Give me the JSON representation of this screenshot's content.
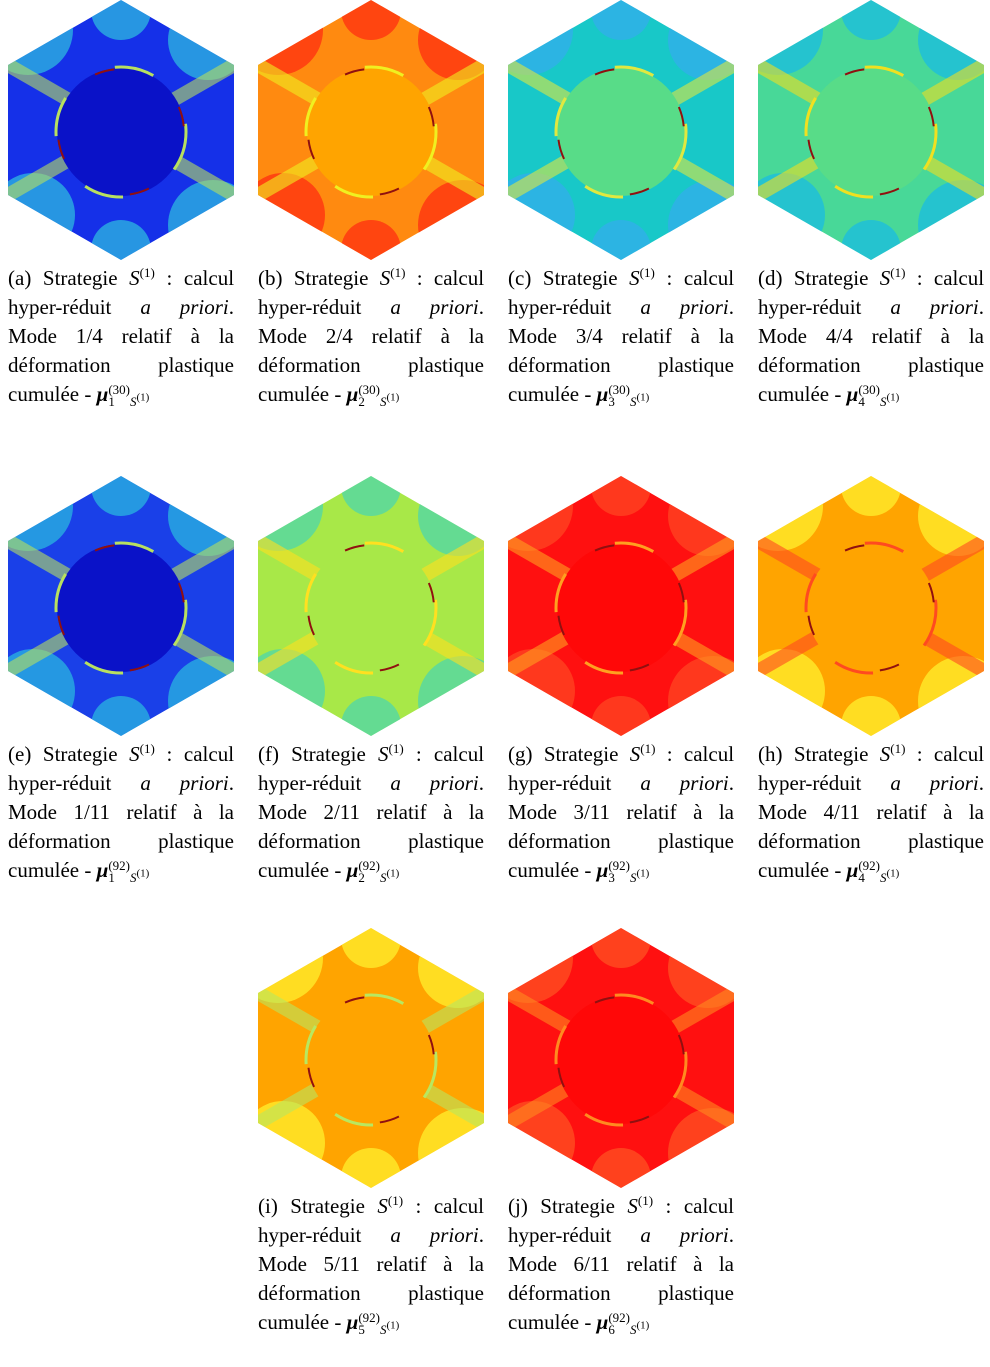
{
  "subfigures": [
    {
      "label": "(a)",
      "word": "Strategie",
      "sym": "S",
      "sym_sup": "(1)",
      "colon": ":",
      "text": "calcul hyper-réduit",
      "emph": "a priori",
      "rest": ". Mode 1/4 relatif à la déformation plastique cumulée -",
      "mu": "μ",
      "mu_sub": "1",
      "mu_sup": "(30)",
      "mu_index": "S",
      "mu_index_sup": "(1)"
    },
    {
      "label": "(b)",
      "word": "Strategie",
      "sym": "S",
      "sym_sup": "(1)",
      "colon": ":",
      "text": "calcul hyper-réduit",
      "emph": "a priori",
      "rest": ". Mode 2/4 relatif à la déformation plastique cumulée -",
      "mu": "μ",
      "mu_sub": "2",
      "mu_sup": "(30)",
      "mu_index": "S",
      "mu_index_sup": "(1)"
    },
    {
      "label": "(c)",
      "word": "Strategie",
      "sym": "S",
      "sym_sup": "(1)",
      "colon": ":",
      "text": "calcul hyper-réduit",
      "emph": "a priori",
      "rest": ". Mode 3/4 relatif à la déformation plastique cumulée -",
      "mu": "μ",
      "mu_sub": "3",
      "mu_sup": "(30)",
      "mu_index": "S",
      "mu_index_sup": "(1)"
    },
    {
      "label": "(d)",
      "word": "Strategie",
      "sym": "S",
      "sym_sup": "(1)",
      "colon": ":",
      "text": "calcul hyper-réduit",
      "emph": "a priori",
      "rest": ". Mode 4/4 relatif à la déformation plastique cumulée -",
      "mu": "μ",
      "mu_sub": "4",
      "mu_sup": "(30)",
      "mu_index": "S",
      "mu_index_sup": "(1)"
    },
    {
      "label": "(e)",
      "word": "Strategie",
      "sym": "S",
      "sym_sup": "(1)",
      "colon": ":",
      "text": "calcul hyper-réduit",
      "emph": "a priori",
      "rest": ". Mode 1/11 relatif à la déformation plastique cumulée -",
      "mu": "μ",
      "mu_sub": "1",
      "mu_sup": "(92)",
      "mu_index": "S",
      "mu_index_sup": "(1)"
    },
    {
      "label": "(f)",
      "word": "Strategie",
      "sym": "S",
      "sym_sup": "(1)",
      "colon": ":",
      "text": "calcul hyper-réduit",
      "emph": "a priori",
      "rest": ". Mode 2/11 relatif à la déformation plastique cumulée -",
      "mu": "μ",
      "mu_sub": "2",
      "mu_sup": "(92)",
      "mu_index": "S",
      "mu_index_sup": "(1)"
    },
    {
      "label": "(g)",
      "word": "Strategie",
      "sym": "S",
      "sym_sup": "(1)",
      "colon": ":",
      "text": "calcul hyper-réduit",
      "emph": "a priori",
      "rest": ". Mode 3/11 relatif à la déformation plastique cumulée -",
      "mu": "μ",
      "mu_sub": "3",
      "mu_sup": "(92)",
      "mu_index": "S",
      "mu_index_sup": "(1)"
    },
    {
      "label": "(h)",
      "word": "Strategie",
      "sym": "S",
      "sym_sup": "(1)",
      "colon": ":",
      "text": "calcul hyper-réduit",
      "emph": "a priori",
      "rest": ". Mode 4/11 relatif à la déformation plastique cumulée -",
      "mu": "μ",
      "mu_sub": "4",
      "mu_sup": "(92)",
      "mu_index": "S",
      "mu_index_sup": "(1)"
    },
    {
      "label": "(i)",
      "word": "Strategie",
      "sym": "S",
      "sym_sup": "(1)",
      "colon": ":",
      "text": "calcul hyper-réduit",
      "emph": "a priori",
      "rest": ". Mode 5/11 relatif à la déformation plastique cumulée -",
      "mu": "μ",
      "mu_sub": "5",
      "mu_sup": "(92)",
      "mu_index": "S",
      "mu_index_sup": "(1)"
    },
    {
      "label": "(j)",
      "word": "Strategie",
      "sym": "S",
      "sym_sup": "(1)",
      "colon": ":",
      "text": "calcul hyper-réduit",
      "emph": "a priori",
      "rest": ". Mode 6/11 relatif à la déformation plastique cumulée -",
      "mu": "μ",
      "mu_sub": "6",
      "mu_sup": "(92)",
      "mu_index": "S",
      "mu_index_sup": "(1)"
    }
  ]
}
